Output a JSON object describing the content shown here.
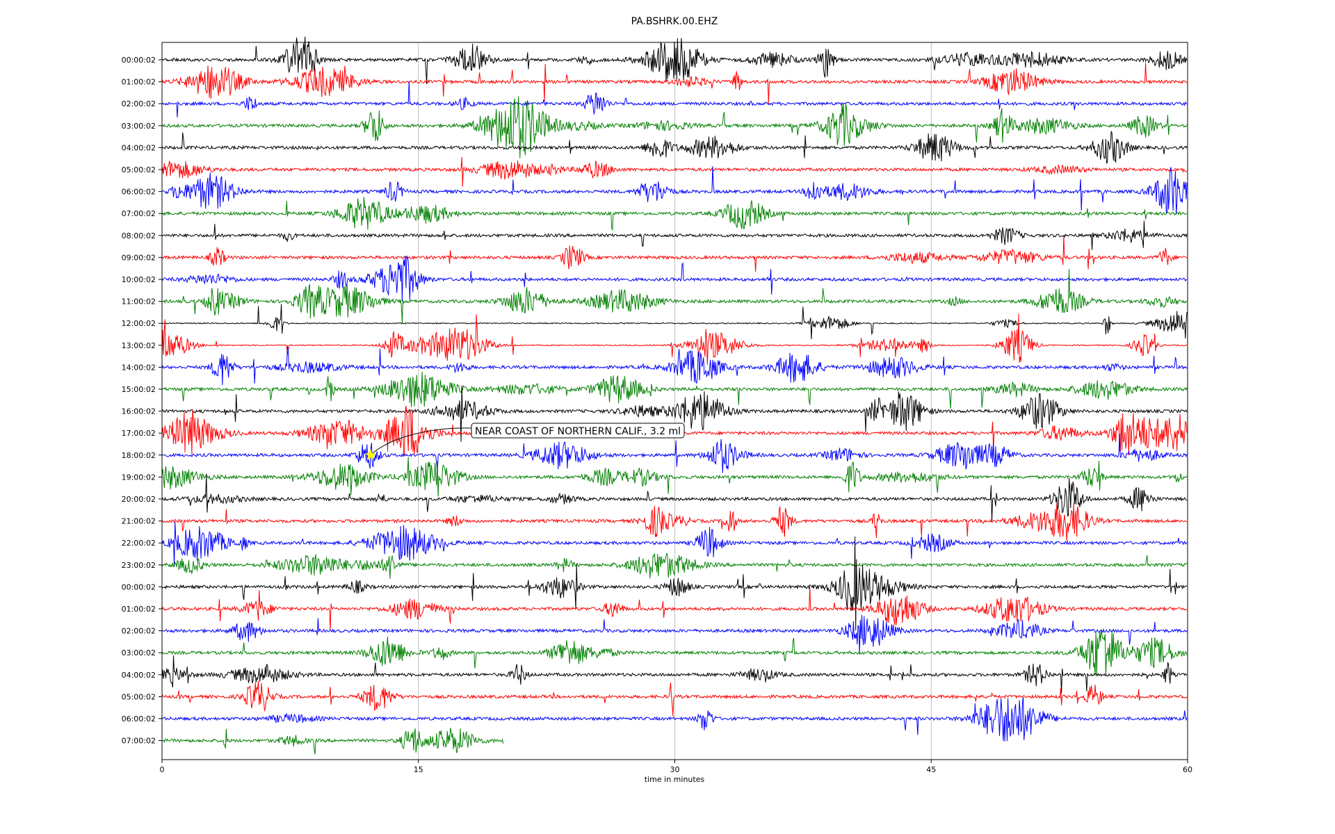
{
  "chart_data": {
    "type": "line",
    "title": "PA.BSHRK.00.EHZ",
    "xlabel": "time in minutes",
    "ylabel": "",
    "xlim": [
      0,
      60
    ],
    "x_ticks": [
      0,
      15,
      30,
      45,
      60
    ],
    "x_tick_labels": [
      "0",
      "15",
      "30",
      "45",
      "60"
    ],
    "grid": "vertical",
    "row_colors": [
      "#000000",
      "#ff0000",
      "#0000ff",
      "#008000"
    ],
    "rows": [
      {
        "label": "00:00:02",
        "end_minute": 60
      },
      {
        "label": "01:00:02",
        "end_minute": 60
      },
      {
        "label": "02:00:02",
        "end_minute": 60
      },
      {
        "label": "03:00:02",
        "end_minute": 60
      },
      {
        "label": "04:00:02",
        "end_minute": 60
      },
      {
        "label": "05:00:02",
        "end_minute": 60
      },
      {
        "label": "06:00:02",
        "end_minute": 60
      },
      {
        "label": "07:00:02",
        "end_minute": 60
      },
      {
        "label": "08:00:02",
        "end_minute": 60
      },
      {
        "label": "09:00:02",
        "end_minute": 60
      },
      {
        "label": "10:00:02",
        "end_minute": 60
      },
      {
        "label": "11:00:02",
        "end_minute": 60
      },
      {
        "label": "12:00:02",
        "end_minute": 60
      },
      {
        "label": "13:00:02",
        "end_minute": 60
      },
      {
        "label": "14:00:02",
        "end_minute": 60
      },
      {
        "label": "15:00:02",
        "end_minute": 60
      },
      {
        "label": "16:00:02",
        "end_minute": 60
      },
      {
        "label": "17:00:02",
        "end_minute": 60
      },
      {
        "label": "18:00:02",
        "end_minute": 60
      },
      {
        "label": "19:00:02",
        "end_minute": 60
      },
      {
        "label": "20:00:02",
        "end_minute": 60
      },
      {
        "label": "21:00:02",
        "end_minute": 60
      },
      {
        "label": "22:00:02",
        "end_minute": 60
      },
      {
        "label": "23:00:02",
        "end_minute": 60
      },
      {
        "label": "00:00:02",
        "end_minute": 60
      },
      {
        "label": "01:00:02",
        "end_minute": 60
      },
      {
        "label": "02:00:02",
        "end_minute": 60
      },
      {
        "label": "03:00:02",
        "end_minute": 60
      },
      {
        "label": "04:00:02",
        "end_minute": 60
      },
      {
        "label": "05:00:02",
        "end_minute": 60
      },
      {
        "label": "06:00:02",
        "end_minute": 60
      },
      {
        "label": "07:00:02",
        "end_minute": 20
      }
    ],
    "event": {
      "label": "NEAR COAST OF NORTHERN CALIF., 3.2 ml",
      "row": 18,
      "minute": 12.2,
      "marker": "star",
      "marker_color": "#ffff00"
    }
  }
}
